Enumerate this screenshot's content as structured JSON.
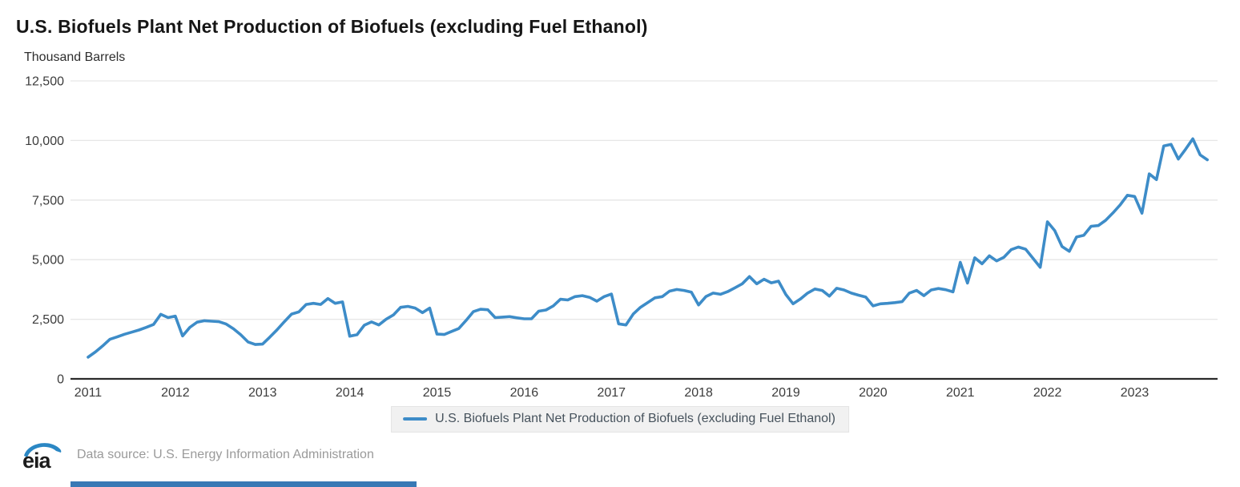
{
  "header": {
    "title": "U.S. Biofuels Plant Net Production of Biofuels (excluding Fuel Ethanol)",
    "units_label": "Thousand Barrels"
  },
  "legend": {
    "label": "U.S. Biofuels Plant Net Production of Biofuels (excluding Fuel Ethanol)"
  },
  "footer": {
    "logo_text": "eia",
    "data_source": "Data source: U.S. Energy Information Administration"
  },
  "colors": {
    "line": "#3d8cc8",
    "grid": "#e6e6e6",
    "axis": "#2b2b2b",
    "tick_text": "#3c3c3c",
    "legend_bg": "#f1f1f1",
    "footer_text": "#9a9a9a",
    "logo_blue": "#2b87c4",
    "bottom_bar": "#3879b5"
  },
  "chart_data": {
    "type": "line",
    "title": "U.S. Biofuels Plant Net Production of Biofuels (excluding Fuel Ethanol)",
    "ylabel": "Thousand Barrels",
    "xlabel": "",
    "ylim": [
      0,
      12500
    ],
    "y_ticks": [
      0,
      2500,
      5000,
      7500,
      10000,
      12500
    ],
    "x_ticks": [
      "2011",
      "2012",
      "2013",
      "2014",
      "2015",
      "2016",
      "2017",
      "2018",
      "2019",
      "2020",
      "2021",
      "2022",
      "2023"
    ],
    "grid": true,
    "legend_position": "bottom",
    "frequency": "monthly",
    "x_start": "2011-01",
    "x_end": "2023-11",
    "series": [
      {
        "name": "U.S. Biofuels Plant Net Production of Biofuels (excluding Fuel Ethanol)",
        "color": "#3d8cc8",
        "values": [
          910,
          1130,
          1380,
          1660,
          1760,
          1870,
          1960,
          2050,
          2160,
          2280,
          2710,
          2570,
          2630,
          1800,
          2160,
          2380,
          2440,
          2420,
          2400,
          2300,
          2100,
          1850,
          1550,
          1440,
          1460,
          1750,
          2060,
          2400,
          2720,
          2810,
          3120,
          3170,
          3120,
          3370,
          3170,
          3230,
          1790,
          1850,
          2250,
          2390,
          2260,
          2500,
          2680,
          3000,
          3040,
          2970,
          2780,
          2970,
          1880,
          1860,
          1990,
          2110,
          2450,
          2820,
          2920,
          2900,
          2570,
          2590,
          2610,
          2560,
          2520,
          2520,
          2840,
          2890,
          3060,
          3340,
          3310,
          3450,
          3490,
          3420,
          3260,
          3450,
          3560,
          2310,
          2260,
          2720,
          3000,
          3200,
          3400,
          3450,
          3680,
          3750,
          3710,
          3640,
          3100,
          3450,
          3600,
          3550,
          3660,
          3820,
          3990,
          4290,
          3990,
          4180,
          4030,
          4100,
          3540,
          3150,
          3350,
          3600,
          3770,
          3710,
          3470,
          3800,
          3730,
          3600,
          3510,
          3430,
          3060,
          3150,
          3170,
          3200,
          3240,
          3600,
          3710,
          3490,
          3730,
          3790,
          3740,
          3650,
          4890,
          4020,
          5080,
          4830,
          5160,
          4950,
          5100,
          5420,
          5530,
          5440,
          5060,
          4680,
          6590,
          6220,
          5550,
          5350,
          5950,
          6020,
          6400,
          6430,
          6650,
          6960,
          7300,
          7700,
          7650,
          6950,
          8600,
          8360,
          9770,
          9840,
          9220,
          9630,
          10070,
          9400,
          9190
        ]
      }
    ]
  }
}
